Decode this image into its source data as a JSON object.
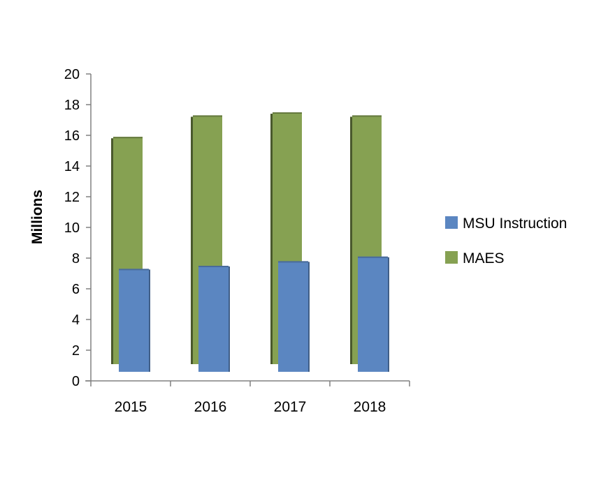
{
  "chart_data": {
    "type": "bar",
    "title": "",
    "xlabel": "",
    "ylabel": "Millions",
    "ylim": [
      0,
      20
    ],
    "yticks": [
      0,
      2,
      4,
      6,
      8,
      10,
      12,
      14,
      16,
      18,
      20
    ],
    "categories": [
      "2015",
      "2016",
      "2017",
      "2018"
    ],
    "series": [
      {
        "name": "MSU Instruction",
        "color": "#5b86c1",
        "values": [
          7.3,
          7.5,
          7.8,
          8.1
        ]
      },
      {
        "name": "MAES",
        "color": "#86a152",
        "values": [
          15.9,
          17.3,
          17.5,
          17.3
        ]
      }
    ],
    "grid": false,
    "legend_position": "right"
  }
}
